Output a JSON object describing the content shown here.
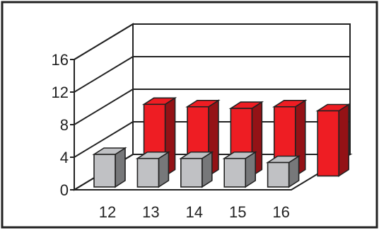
{
  "chart_data": {
    "type": "bar",
    "categories": [
      "12",
      "13",
      "14",
      "15",
      "16"
    ],
    "series": [
      {
        "values": [
          4.0,
          3.5,
          3.5,
          3.5,
          3.0
        ],
        "color": "#c0c1c4"
      },
      {
        "values": [
          8.8,
          8.5,
          8.3,
          8.5,
          8.0
        ],
        "color": "#ee1d23"
      }
    ],
    "yticks": [
      "0",
      "4",
      "8",
      "12",
      "16"
    ],
    "ylim": [
      0,
      16
    ],
    "grid": true,
    "legend": "none",
    "three_d": true
  }
}
